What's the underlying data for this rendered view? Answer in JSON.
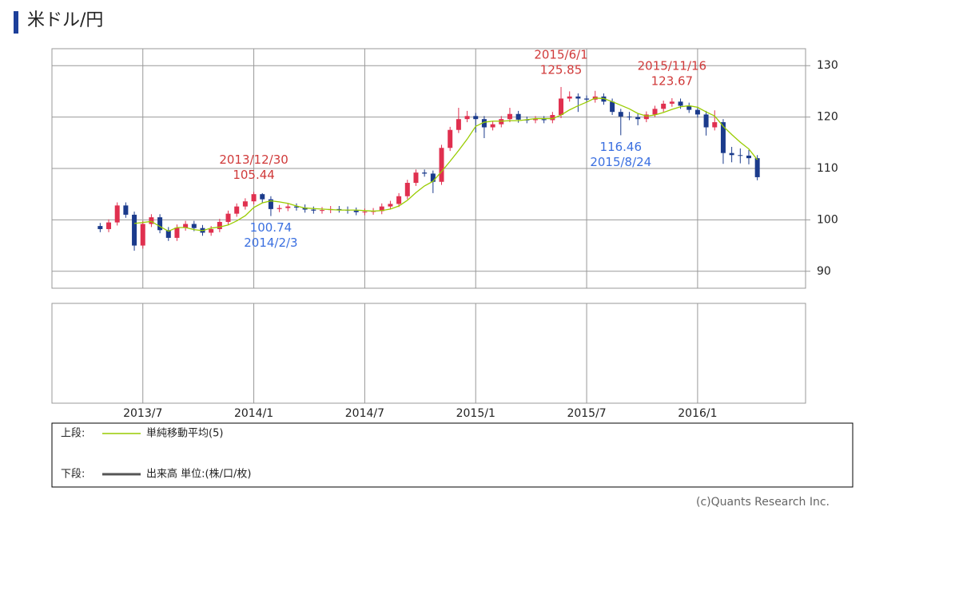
{
  "chart_data": {
    "type": "candlestick",
    "title": "米ドル/円",
    "categories": [
      null,
      null,
      null,
      null,
      null,
      "2013/7",
      null,
      null,
      null,
      null,
      null,
      null,
      null,
      null,
      null,
      null,
      null,
      null,
      "2014/1",
      null,
      null,
      null,
      null,
      null,
      null,
      null,
      null,
      null,
      null,
      null,
      null,
      "2014/7",
      null,
      null,
      null,
      null,
      null,
      null,
      null,
      null,
      null,
      null,
      null,
      null,
      "2015/1",
      null,
      null,
      null,
      null,
      null,
      null,
      null,
      null,
      null,
      null,
      null,
      null,
      "2015/7",
      null,
      null,
      null,
      null,
      null,
      null,
      null,
      null,
      null,
      null,
      null,
      null,
      "2016/1",
      null,
      null,
      null,
      null,
      null,
      null,
      null
    ],
    "ohlc": [
      [
        98.8,
        99.4,
        97.6,
        98.2
      ],
      [
        98.2,
        100.1,
        97.6,
        99.5
      ],
      [
        99.5,
        103.4,
        98.9,
        102.8
      ],
      [
        102.8,
        103.4,
        100.4,
        101.0
      ],
      [
        101.0,
        101.6,
        94.0,
        95.0
      ],
      [
        95.0,
        99.8,
        94.4,
        99.2
      ],
      [
        99.2,
        101.1,
        98.6,
        100.5
      ],
      [
        100.5,
        101.1,
        97.4,
        98.0
      ],
      [
        98.0,
        98.6,
        95.9,
        96.5
      ],
      [
        96.5,
        99.1,
        95.9,
        98.5
      ],
      [
        98.5,
        99.8,
        97.9,
        99.2
      ],
      [
        99.2,
        99.8,
        97.8,
        98.4
      ],
      [
        98.4,
        99.0,
        96.9,
        97.5
      ],
      [
        97.5,
        98.8,
        96.9,
        98.2
      ],
      [
        98.2,
        100.2,
        97.6,
        99.6
      ],
      [
        99.6,
        101.8,
        99.0,
        101.2
      ],
      [
        101.2,
        103.2,
        100.6,
        102.6
      ],
      [
        102.6,
        104.2,
        102.0,
        103.6
      ],
      [
        103.6,
        105.44,
        103.0,
        105.0
      ],
      [
        105.0,
        105.2,
        103.4,
        104.0
      ],
      [
        104.0,
        104.6,
        100.74,
        102.1
      ],
      [
        102.1,
        102.9,
        101.5,
        102.3
      ],
      [
        102.3,
        103.2,
        101.7,
        102.6
      ],
      [
        102.6,
        103.2,
        101.8,
        102.4
      ],
      [
        102.4,
        103.0,
        101.4,
        102.0
      ],
      [
        102.0,
        102.6,
        101.2,
        101.8
      ],
      [
        101.8,
        102.5,
        101.2,
        101.9
      ],
      [
        101.9,
        102.7,
        101.3,
        102.1
      ],
      [
        102.1,
        102.7,
        101.4,
        102.0
      ],
      [
        102.0,
        102.6,
        101.2,
        101.8
      ],
      [
        101.8,
        102.4,
        100.9,
        101.5
      ],
      [
        101.5,
        102.2,
        100.9,
        101.6
      ],
      [
        101.6,
        102.3,
        101.0,
        101.7
      ],
      [
        101.7,
        103.2,
        101.1,
        102.6
      ],
      [
        102.6,
        103.7,
        102.0,
        103.1
      ],
      [
        103.1,
        105.2,
        102.5,
        104.6
      ],
      [
        104.6,
        107.8,
        104.0,
        107.2
      ],
      [
        107.2,
        109.8,
        106.6,
        109.2
      ],
      [
        109.2,
        109.8,
        108.4,
        109.0
      ],
      [
        109.0,
        109.6,
        105.2,
        107.4
      ],
      [
        107.4,
        114.6,
        106.8,
        114.0
      ],
      [
        114.0,
        118.1,
        113.4,
        117.5
      ],
      [
        117.5,
        121.8,
        116.9,
        119.6
      ],
      [
        119.6,
        121.2,
        119.0,
        120.2
      ],
      [
        120.2,
        120.8,
        117.0,
        119.6
      ],
      [
        119.6,
        120.2,
        115.9,
        118.0
      ],
      [
        118.0,
        119.2,
        117.4,
        118.6
      ],
      [
        118.6,
        120.2,
        118.0,
        119.6
      ],
      [
        119.6,
        121.8,
        119.0,
        120.6
      ],
      [
        120.6,
        121.2,
        118.9,
        119.5
      ],
      [
        119.5,
        120.1,
        118.8,
        119.4
      ],
      [
        119.4,
        120.2,
        118.8,
        119.6
      ],
      [
        119.6,
        120.2,
        118.8,
        119.4
      ],
      [
        119.4,
        121.0,
        118.8,
        120.4
      ],
      [
        120.4,
        125.85,
        119.8,
        123.6
      ],
      [
        123.6,
        125.0,
        123.0,
        124.0
      ],
      [
        124.0,
        124.6,
        121.0,
        123.6
      ],
      [
        123.6,
        124.2,
        122.8,
        123.4
      ],
      [
        123.4,
        125.1,
        122.8,
        124.0
      ],
      [
        124.0,
        124.6,
        122.4,
        123.0
      ],
      [
        123.0,
        123.6,
        120.4,
        121.0
      ],
      [
        121.0,
        121.6,
        116.46,
        120.1
      ],
      [
        120.1,
        121.0,
        119.4,
        120.0
      ],
      [
        120.0,
        120.6,
        118.4,
        119.6
      ],
      [
        119.6,
        121.1,
        119.0,
        120.5
      ],
      [
        120.5,
        122.2,
        120.0,
        121.6
      ],
      [
        121.6,
        123.2,
        121.0,
        122.6
      ],
      [
        122.6,
        123.67,
        122.0,
        123.0
      ],
      [
        123.0,
        123.6,
        121.6,
        122.2
      ],
      [
        122.2,
        122.8,
        120.8,
        121.4
      ],
      [
        121.4,
        122.0,
        119.9,
        120.5
      ],
      [
        120.5,
        121.2,
        116.4,
        118.0
      ],
      [
        118.0,
        121.3,
        117.4,
        119.0
      ],
      [
        119.0,
        119.6,
        110.9,
        113.0
      ],
      [
        113.0,
        114.2,
        111.2,
        112.6
      ],
      [
        112.6,
        113.9,
        111.0,
        112.5
      ],
      [
        112.5,
        113.6,
        110.8,
        112.0
      ],
      [
        112.0,
        112.6,
        107.7,
        108.3
      ]
    ],
    "up_color": "#e0304f",
    "down_color": "#1b3b8c",
    "ma": {
      "name": "単純移動平均(5)",
      "color": "#99cc00",
      "values": [
        null,
        null,
        null,
        null,
        99.3,
        99.5,
        99.7,
        98.7,
        97.8,
        98.5,
        98.5,
        98.1,
        97.9,
        98.4,
        98.6,
        99.0,
        99.8,
        100.8,
        102.4,
        103.3,
        103.7,
        103.5,
        103.2,
        102.7,
        102.3,
        102.2,
        102.1,
        102.0,
        101.9,
        101.9,
        101.9,
        101.8,
        101.7,
        101.8,
        102.1,
        102.7,
        103.8,
        105.3,
        106.6,
        107.5,
        109.4,
        111.4,
        113.5,
        115.7,
        118.2,
        119.0,
        119.2,
        119.2,
        119.3,
        119.3,
        119.5,
        119.7,
        119.7,
        119.7,
        120.4,
        121.4,
        122.2,
        122.9,
        123.7,
        123.6,
        123.0,
        122.3,
        121.6,
        120.7,
        120.2,
        120.4,
        120.9,
        121.5,
        122.0,
        122.2,
        121.9,
        121.0,
        120.2,
        118.2,
        116.6,
        115.1,
        113.8,
        111.7
      ]
    },
    "ylim": [
      86.7,
      133.3
    ],
    "yticks": [
      90,
      100,
      110,
      120,
      130
    ],
    "grid": true,
    "annotations": [
      {
        "date": "2013/12/30",
        "value": 105.44
      },
      {
        "date": "2014/2/3",
        "value": 100.74
      },
      {
        "date": "2015/6/1",
        "value": 125.85
      },
      {
        "date": "2015/8/24",
        "value": 116.46
      },
      {
        "date": "2015/11/16",
        "value": 123.67
      }
    ],
    "high_color": "#d03a3a",
    "low_color": "#3a6fe0",
    "legend": {
      "upper_label": "上段:",
      "lower_label": "下段:",
      "volume_name": "出来高 単位:(株/口/枚)",
      "volume_color": "#555555"
    },
    "copyright": "(c)Quants Research Inc."
  }
}
